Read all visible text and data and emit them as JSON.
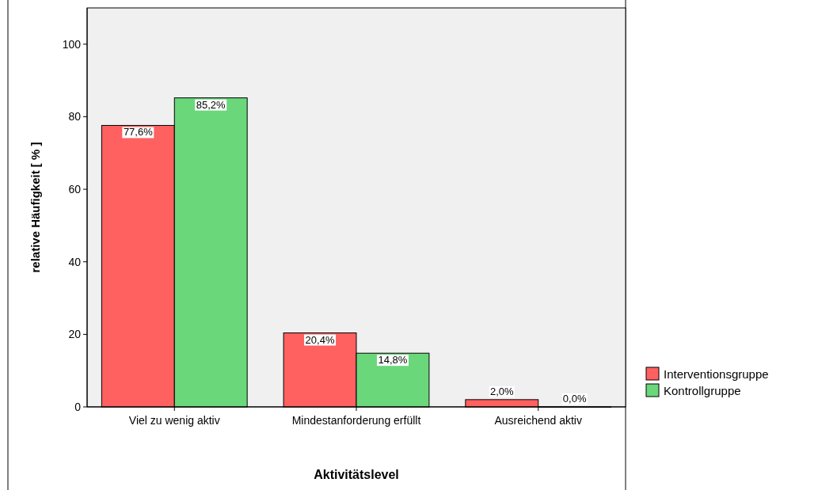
{
  "chart_data": {
    "type": "bar",
    "xlabel": "Aktivitätslevel",
    "ylabel": "relative Häufigkeit  [ % ]",
    "categories": [
      "Viel zu wenig aktiv",
      "Mindestanforderung erfüllt",
      "Ausreichend aktiv"
    ],
    "series": [
      {
        "name": "Interventionsgruppe",
        "color": "#ff6060",
        "values": [
          77.6,
          20.4,
          2.0
        ],
        "value_labels": [
          "77,6%",
          "20,4%",
          "2,0%"
        ]
      },
      {
        "name": "Kontrollgruppe",
        "color": "#6ad77b",
        "values": [
          85.2,
          14.8,
          0.0
        ],
        "value_labels": [
          "85,2%",
          "14,8%",
          "0,0%"
        ]
      }
    ],
    "ylim": [
      0,
      110
    ],
    "yticks": [
      0,
      20,
      40,
      60,
      80,
      100
    ],
    "legend": "right",
    "grid": false
  }
}
